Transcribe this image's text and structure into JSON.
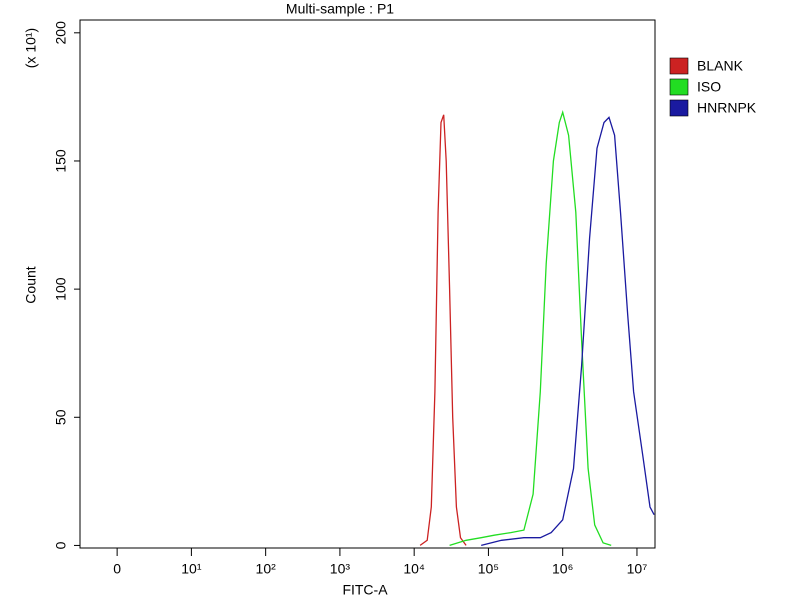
{
  "chart_data": {
    "type": "line",
    "title": "Multi-sample : P1",
    "xlabel": "FITC-A",
    "ylabel": "Count",
    "y_multiplier_label": "(x 10¹)",
    "xscale": "symlog",
    "linthresh": 10,
    "xlim": [
      -5,
      17500000
    ],
    "ylim": [
      -1,
      205
    ],
    "xticks": [
      0,
      {
        "value": 10,
        "label": "10¹"
      },
      {
        "value": 100,
        "label": "10²"
      },
      {
        "value": 1000,
        "label": "10³"
      },
      {
        "value": 10000,
        "label": "10⁴"
      },
      {
        "value": 100000,
        "label": "10⁵"
      },
      {
        "value": 1000000,
        "label": "10⁶"
      },
      {
        "value": 10000000,
        "label": "10⁷"
      }
    ],
    "yticks": [
      0,
      50,
      100,
      150,
      200
    ],
    "legend": "outside-right",
    "series": [
      {
        "name": "BLANK",
        "color": "#cc2222",
        "x": [
          12000,
          15000,
          17000,
          19000,
          21000,
          23000,
          25000,
          27000,
          30000,
          33000,
          37000,
          42000,
          50000
        ],
        "values": [
          0,
          2,
          15,
          60,
          130,
          165,
          168,
          150,
          100,
          50,
          15,
          3,
          0
        ]
      },
      {
        "name": "ISO",
        "color": "#22dd22",
        "x": [
          30000,
          50000,
          80000,
          120000,
          200000,
          300000,
          400000,
          500000,
          600000,
          750000,
          900000,
          1000000,
          1200000,
          1500000,
          1800000,
          2200000,
          2700000,
          3500000,
          4500000
        ],
        "values": [
          0,
          2,
          3,
          4,
          5,
          6,
          20,
          60,
          110,
          150,
          165,
          169,
          160,
          130,
          80,
          30,
          8,
          1,
          0
        ]
      },
      {
        "name": "HNRNPK",
        "color": "#1a1aa0",
        "x": [
          80000,
          150000,
          300000,
          500000,
          700000,
          1000000,
          1400000,
          1800000,
          2300000,
          2900000,
          3600000,
          4200000,
          5000000,
          6000000,
          7500000,
          9000000,
          12000000,
          15000000,
          17000000
        ],
        "values": [
          0,
          2,
          3,
          3,
          5,
          10,
          30,
          70,
          120,
          155,
          165,
          167,
          160,
          130,
          90,
          60,
          35,
          15,
          12
        ]
      }
    ]
  }
}
